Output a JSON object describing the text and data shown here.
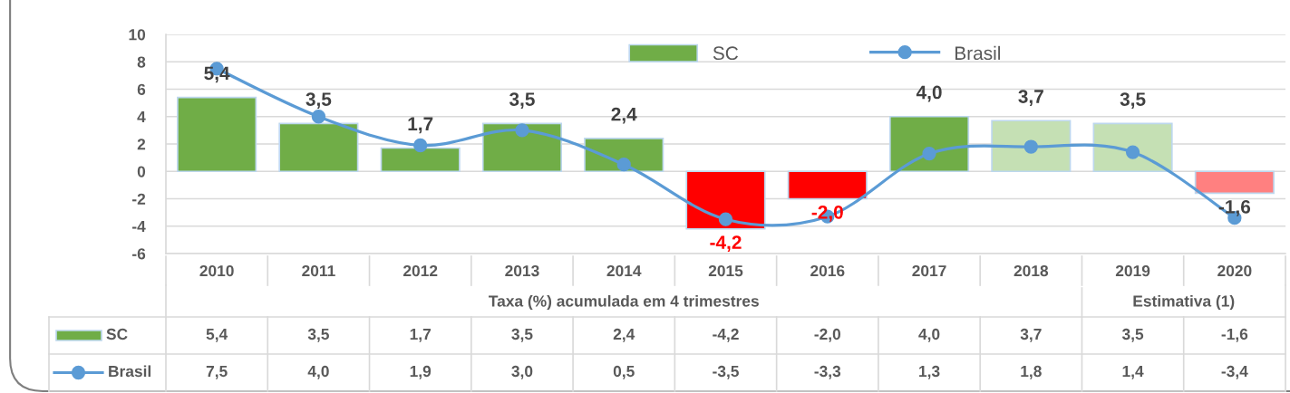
{
  "chart_data": {
    "type": "bar",
    "categories": [
      "2010",
      "2011",
      "2012",
      "2013",
      "2014",
      "2015",
      "2016",
      "2017",
      "2018",
      "2019",
      "2020"
    ],
    "xlabel": "Taxa (%) acumulada em 4 trimestres",
    "ylim": [
      -6,
      10
    ],
    "yticks": [
      -6,
      -4,
      -2,
      0,
      2,
      4,
      6,
      8,
      10
    ],
    "grid": "y",
    "legend": "top",
    "marker": "circle",
    "line_style": "solid",
    "annotations": [
      "Estimativa (1)"
    ],
    "series": [
      {
        "name": "SC",
        "color": "#70ad47",
        "colors": [
          "#70ad47",
          "#70ad47",
          "#70ad47",
          "#70ad47",
          "#70ad47",
          "#ff0000",
          "#ff0000",
          "#70ad47",
          "#c5e0b4",
          "#c5e0b4",
          "#ff8080"
        ],
        "values": [
          5.4,
          3.5,
          1.7,
          3.5,
          2.4,
          -4.2,
          -2.0,
          4.0,
          3.7,
          3.5,
          -1.6
        ],
        "value_labels": [
          "5,4",
          "3,5",
          "1,7",
          "3,5",
          "2,4",
          "-4,2",
          "-2,0",
          "4,0",
          "3,7",
          "3,5",
          "-1,6"
        ]
      },
      {
        "name": "Brasil",
        "type": "line",
        "color": "#5b9bd5",
        "values": [
          7.5,
          4.0,
          1.9,
          3.0,
          0.5,
          -3.5,
          -3.3,
          1.3,
          1.8,
          1.4,
          -3.4
        ],
        "value_labels": [
          "7,5",
          "4,0",
          "1,9",
          "3,0",
          "0,5",
          "-3,5",
          "-3,3",
          "1,3",
          "1,8",
          "1,4",
          "-3,4"
        ]
      }
    ]
  }
}
